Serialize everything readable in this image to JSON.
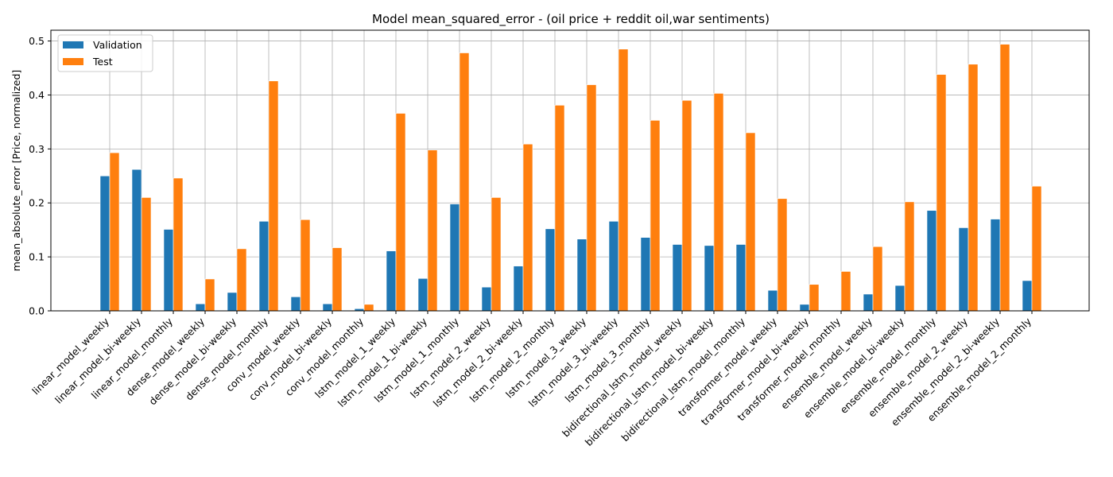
{
  "chart_data": {
    "type": "bar",
    "title": "Model mean_squared_error - (oil price + reddit oil,war sentiments)",
    "xlabel": "",
    "ylabel": "mean_absolute_error [Price, normalized]",
    "ylim": [
      0,
      0.52
    ],
    "yticks": [
      "0.0",
      "0.1",
      "0.2",
      "0.3",
      "0.4",
      "0.5"
    ],
    "ytick_values": [
      0,
      0.1,
      0.2,
      0.3,
      0.4,
      0.5
    ],
    "grid": true,
    "legend_position": "top-left",
    "categories": [
      "linear_model_weekly",
      "linear_model_bi-weekly",
      "linear_model_monthly",
      "dense_model_weekly",
      "dense_model_bi-weekly",
      "dense_model_monthly",
      "conv_model_weekly",
      "conv_model_bi-weekly",
      "conv_model_monthly",
      "lstm_model_1_weekly",
      "lstm_model_1_bi-weekly",
      "lstm_model_1_monthly",
      "lstm_model_2_weekly",
      "lstm_model_2_bi-weekly",
      "lstm_model_2_monthly",
      "lstm_model_3_weekly",
      "lstm_model_3_bi-weekly",
      "lstm_model_3_monthly",
      "bidirectional_lstm_model_weekly",
      "bidirectional_lstm_model_bi-weekly",
      "bidirectional_lstm_model_monthly",
      "transformer_model_weekly",
      "transformer_model_bi-weekly",
      "transformer_model_monthly",
      "ensemble_model_weekly",
      "ensemble_model_bi-weekly",
      "ensemble_model_monthly",
      "ensemble_model_2_weekly",
      "ensemble_model_2_bi-weekly",
      "ensemble_model_2_monthly"
    ],
    "series": [
      {
        "name": "Validation",
        "color": "#1f77b4",
        "values": [
          0.25,
          0.262,
          0.151,
          0.013,
          0.034,
          0.166,
          0.026,
          0.013,
          0.004,
          0.111,
          0.06,
          0.198,
          0.044,
          0.083,
          0.152,
          0.133,
          0.166,
          0.136,
          0.123,
          0.121,
          0.123,
          0.038,
          0.012,
          0.001,
          0.031,
          0.047,
          0.186,
          0.154,
          0.17,
          0.056
        ]
      },
      {
        "name": "Test",
        "color": "#ff7f0e",
        "values": [
          0.293,
          0.21,
          0.246,
          0.059,
          0.115,
          0.426,
          0.169,
          0.117,
          0.012,
          0.366,
          0.298,
          0.478,
          0.21,
          0.309,
          0.381,
          0.419,
          0.485,
          0.353,
          0.39,
          0.403,
          0.33,
          0.208,
          0.049,
          0.073,
          0.119,
          0.202,
          0.438,
          0.457,
          0.494,
          0.231
        ]
      }
    ]
  }
}
